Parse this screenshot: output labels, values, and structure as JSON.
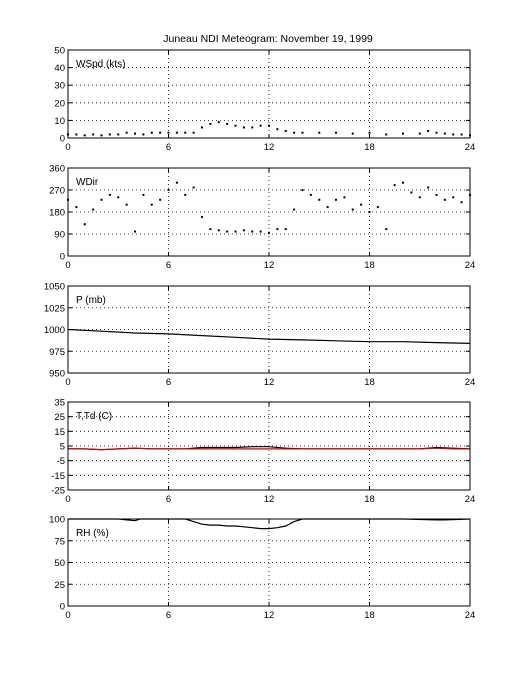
{
  "title": "Juneau NDI Meteogram:  November 19, 1999",
  "chart_data": [
    {
      "type": "scatter",
      "panel_label": "WSpd (kts)",
      "xlim": [
        0,
        24
      ],
      "ylim": [
        0,
        50
      ],
      "xticks": [
        0,
        6,
        12,
        18,
        24
      ],
      "yticks": [
        0,
        10,
        20,
        30,
        40,
        50
      ],
      "grid": true,
      "series": [
        {
          "color": "#000000",
          "x": [
            0,
            0.5,
            1,
            1.5,
            2,
            2.5,
            3,
            3.5,
            4,
            4.5,
            5,
            5.5,
            6,
            6.5,
            7,
            7.5,
            8,
            8.5,
            9,
            9.5,
            10,
            10.5,
            11,
            11.5,
            12,
            12.5,
            13,
            13.5,
            14,
            15,
            16,
            17,
            18,
            19,
            20,
            21,
            21.5,
            22,
            22.5,
            23,
            23.5,
            24
          ],
          "y": [
            2,
            2,
            1.5,
            2,
            1.5,
            2,
            2,
            3,
            2.5,
            2,
            3,
            3,
            3,
            3,
            3,
            3,
            6,
            8,
            9,
            8,
            7,
            6,
            6,
            7,
            7,
            5,
            4,
            3,
            3,
            3,
            3,
            2.5,
            3,
            2,
            2.5,
            2.5,
            4,
            3,
            2.5,
            2,
            2,
            1.5
          ]
        }
      ]
    },
    {
      "type": "scatter",
      "panel_label": "WDir",
      "xlim": [
        0,
        24
      ],
      "ylim": [
        0,
        360
      ],
      "xticks": [
        0,
        6,
        12,
        18,
        24
      ],
      "yticks": [
        0,
        90,
        180,
        270,
        360
      ],
      "grid": true,
      "series": [
        {
          "color": "#000000",
          "x": [
            0,
            0.5,
            1,
            1.5,
            2,
            2.5,
            3,
            3.5,
            4,
            4.5,
            5,
            5.5,
            6,
            6.5,
            7,
            7.5,
            8,
            8.5,
            9,
            9.5,
            10,
            10.5,
            11,
            11.5,
            12,
            12.5,
            13,
            13.5,
            14,
            14.5,
            15,
            15.5,
            16,
            16.5,
            17,
            17.5,
            18,
            18.5,
            19,
            19.5,
            20,
            20.5,
            21,
            21.5,
            22,
            22.5,
            23,
            23.5,
            24
          ],
          "y": [
            230,
            200,
            130,
            190,
            230,
            250,
            240,
            210,
            100,
            250,
            210,
            230,
            270,
            300,
            250,
            280,
            160,
            110,
            105,
            100,
            100,
            105,
            100,
            100,
            95,
            110,
            110,
            190,
            270,
            250,
            230,
            200,
            230,
            240,
            190,
            210,
            180,
            200,
            110,
            290,
            300,
            260,
            240,
            280,
            250,
            230,
            240,
            220,
            250
          ]
        }
      ]
    },
    {
      "type": "line",
      "panel_label": "P (mb)",
      "xlim": [
        0,
        24
      ],
      "ylim": [
        950,
        1050
      ],
      "xticks": [
        0,
        6,
        12,
        18,
        24
      ],
      "yticks": [
        950,
        975,
        1000,
        1025,
        1050
      ],
      "grid": true,
      "series": [
        {
          "color": "#000000",
          "x": [
            0,
            2,
            4,
            6,
            8,
            10,
            12,
            14,
            16,
            18,
            20,
            22,
            24
          ],
          "y": [
            1000,
            998,
            996,
            995,
            993,
            991,
            989,
            988,
            987,
            986,
            986,
            985,
            984
          ]
        }
      ]
    },
    {
      "type": "line",
      "panel_label": "T,Td (C)",
      "xlim": [
        0,
        24
      ],
      "ylim": [
        -25,
        35
      ],
      "xticks": [
        0,
        6,
        12,
        18,
        24
      ],
      "yticks": [
        -25,
        -15,
        -5,
        5,
        15,
        25,
        35
      ],
      "grid": true,
      "series": [
        {
          "color": "#000000",
          "x": [
            0,
            1,
            2,
            3,
            4,
            5,
            6,
            7,
            8,
            9,
            10,
            11,
            12,
            13,
            14,
            15,
            16,
            17,
            18,
            19,
            20,
            21,
            22,
            23,
            24
          ],
          "y": [
            3,
            3,
            2.5,
            3,
            3.5,
            3,
            3,
            3,
            4,
            4,
            4,
            4.5,
            4.5,
            3.5,
            3,
            3,
            3,
            3,
            3,
            3,
            3,
            3,
            4,
            3.5,
            3
          ]
        },
        {
          "color": "#cc0000",
          "x": [
            0,
            1,
            2,
            3,
            4,
            5,
            6,
            7,
            8,
            9,
            10,
            11,
            12,
            13,
            14,
            15,
            16,
            17,
            18,
            19,
            20,
            21,
            22,
            23,
            24
          ],
          "y": [
            3,
            3,
            2.5,
            3,
            3.5,
            3,
            3,
            3,
            3,
            3,
            3,
            3,
            3,
            3,
            3,
            3,
            3,
            3,
            3,
            3,
            3,
            3,
            3.5,
            3,
            3
          ]
        }
      ]
    },
    {
      "type": "line",
      "panel_label": "RH (%)",
      "xlim": [
        0,
        24
      ],
      "ylim": [
        0,
        100
      ],
      "xticks": [
        0,
        6,
        12,
        18,
        24
      ],
      "yticks": [
        0,
        25,
        50,
        75,
        100
      ],
      "grid": true,
      "series": [
        {
          "color": "#000000",
          "x": [
            0,
            3,
            4,
            4.3,
            5,
            7,
            8,
            8.5,
            9,
            9.5,
            10,
            10.5,
            11,
            11.5,
            12,
            12.5,
            13,
            13.5,
            14,
            16,
            18,
            20,
            22,
            22.5,
            24
          ],
          "y": [
            100,
            100,
            98,
            100,
            100,
            100,
            94,
            93,
            93,
            92,
            92,
            91,
            90,
            89,
            89,
            90,
            92,
            97,
            100,
            100,
            100,
            100,
            99,
            99,
            100
          ]
        }
      ]
    }
  ]
}
